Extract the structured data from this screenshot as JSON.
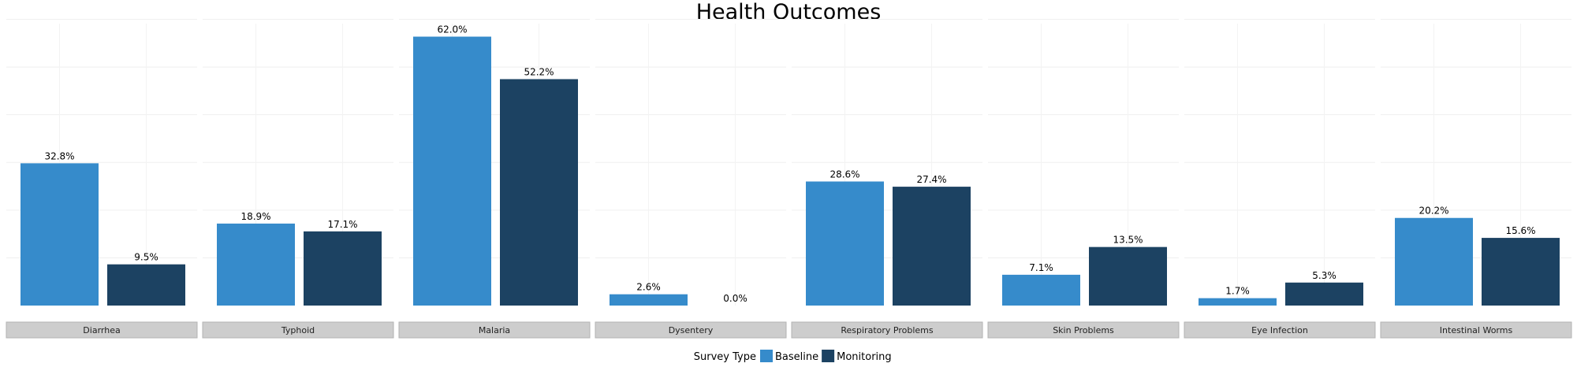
{
  "chart_data": {
    "type": "bar",
    "title": "Health Outcomes",
    "facets": [
      "Diarrhea",
      "Typhoid",
      "Malaria",
      "Dysentery",
      "Respiratory Problems",
      "Skin Problems",
      "Eye Infection",
      "Intestinal Worms"
    ],
    "series": [
      {
        "name": "Baseline",
        "color": "#368bcb",
        "values": [
          32.8,
          18.9,
          62.0,
          2.6,
          28.6,
          7.1,
          1.7,
          20.2
        ],
        "labels": [
          "32.8%",
          "18.9%",
          "62.0%",
          "2.6%",
          "28.6%",
          "7.1%",
          "1.7%",
          "20.2%"
        ]
      },
      {
        "name": "Monitoring",
        "color": "#1c4262",
        "values": [
          9.5,
          17.1,
          52.2,
          0.0,
          27.4,
          13.5,
          5.3,
          15.6
        ],
        "labels": [
          "9.5%",
          "17.1%",
          "52.2%",
          "0.0%",
          "27.4%",
          "13.5%",
          "5.3%",
          "15.6%"
        ]
      }
    ],
    "ylim": [
      0,
      65
    ],
    "grid": true,
    "legend": {
      "title": "Survey Type",
      "position": "bottom"
    }
  }
}
